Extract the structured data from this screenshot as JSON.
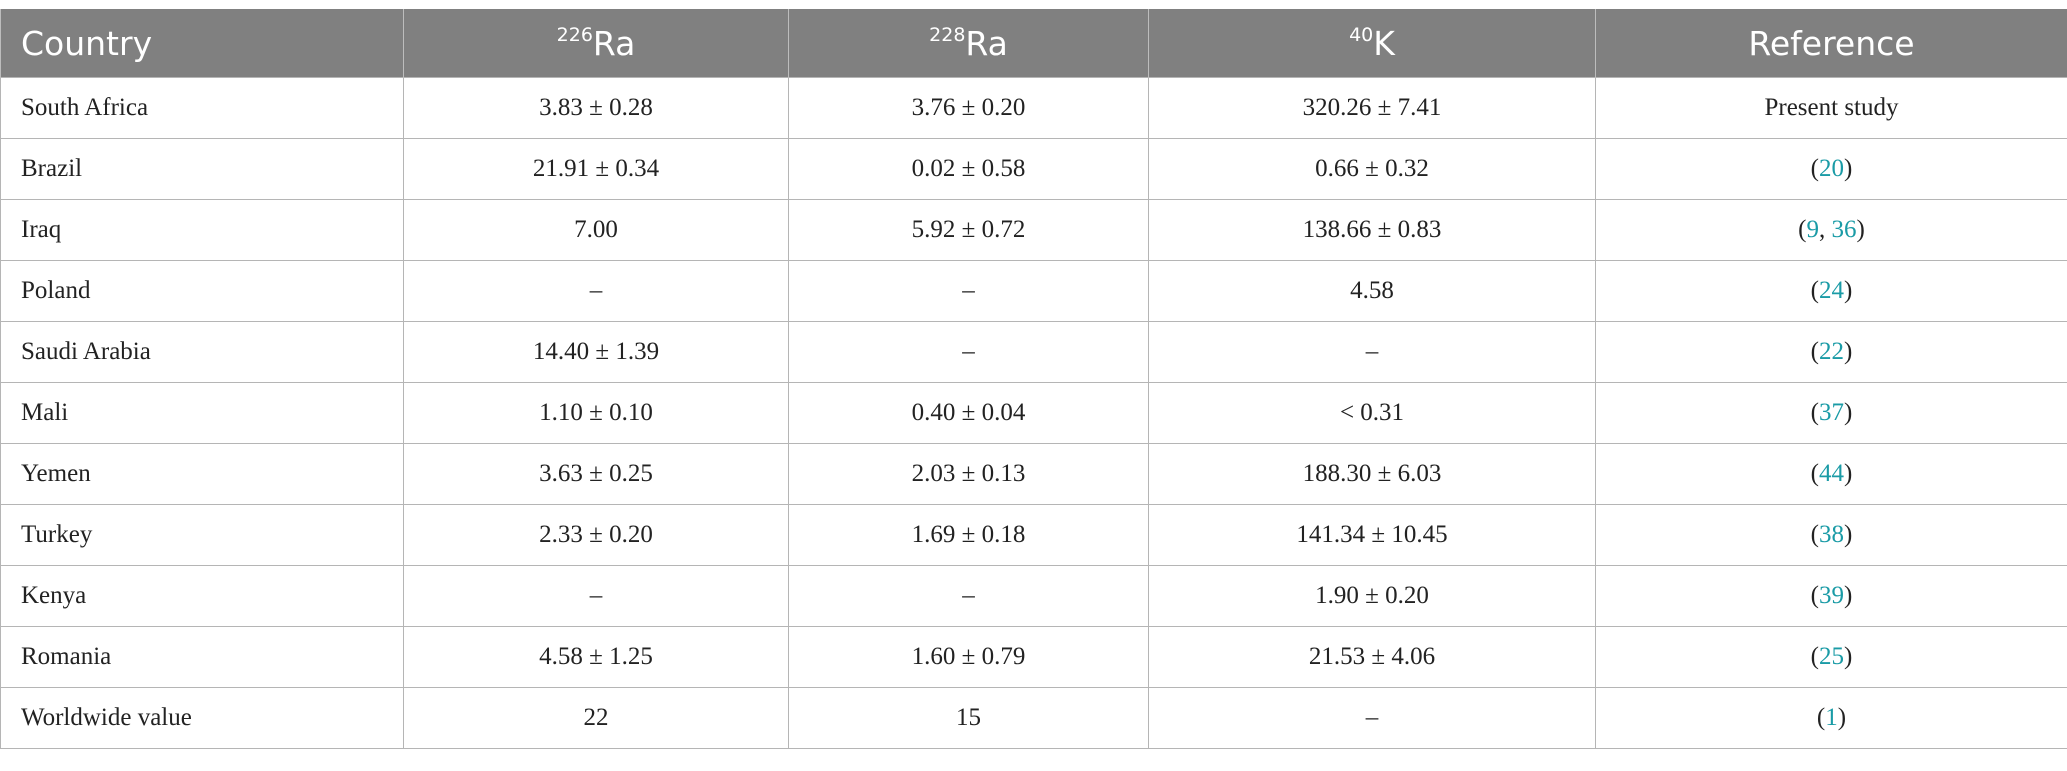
{
  "header": [
    {
      "text": "Country"
    },
    {
      "sup": "226",
      "text": "Ra"
    },
    {
      "sup": "228",
      "text": "Ra"
    },
    {
      "sup": "40",
      "text": "K"
    },
    {
      "text": "Reference"
    }
  ],
  "rows": [
    {
      "cells": [
        "South Africa",
        "3.83 ± 0.28",
        "3.76 ± 0.20",
        "320.26 ± 7.41"
      ],
      "reference": [
        "Present study"
      ]
    },
    {
      "cells": [
        "Brazil",
        "21.91 ± 0.34",
        "0.02 ± 0.58",
        "0.66 ± 0.32"
      ],
      "reference": [
        "(",
        {
          "ref": "20"
        },
        ")"
      ]
    },
    {
      "cells": [
        "Iraq",
        "7.00",
        "5.92 ± 0.72",
        "138.66 ± 0.83"
      ],
      "reference": [
        "(",
        {
          "ref": "9"
        },
        ", ",
        {
          "ref": "36"
        },
        ")"
      ]
    },
    {
      "cells": [
        "Poland",
        "–",
        "–",
        "4.58"
      ],
      "reference": [
        "(",
        {
          "ref": "24"
        },
        ")"
      ]
    },
    {
      "cells": [
        "Saudi Arabia",
        "14.40 ± 1.39",
        "–",
        "–"
      ],
      "reference": [
        "(",
        {
          "ref": "22"
        },
        ")"
      ]
    },
    {
      "cells": [
        "Mali",
        "1.10 ± 0.10",
        "0.40 ± 0.04",
        "< 0.31"
      ],
      "reference": [
        "(",
        {
          "ref": "37"
        },
        ")"
      ]
    },
    {
      "cells": [
        "Yemen",
        "3.63 ± 0.25",
        "2.03 ± 0.13",
        "188.30 ± 6.03"
      ],
      "reference": [
        "(",
        {
          "ref": "44"
        },
        ")"
      ]
    },
    {
      "cells": [
        "Turkey",
        "2.33 ± 0.20",
        "1.69 ± 0.18",
        "141.34 ± 10.45"
      ],
      "reference": [
        "(",
        {
          "ref": "38"
        },
        ")"
      ]
    },
    {
      "cells": [
        "Kenya",
        "–",
        "–",
        "1.90 ± 0.20"
      ],
      "reference": [
        "(",
        {
          "ref": "39"
        },
        ")"
      ]
    },
    {
      "cells": [
        "Romania",
        "4.58 ± 1.25",
        "1.60 ± 0.79",
        "21.53 ± 4.06"
      ],
      "reference": [
        "(",
        {
          "ref": "25"
        },
        ")"
      ]
    },
    {
      "cells": [
        "Worldwide value",
        "22",
        "15",
        "–"
      ],
      "reference": [
        "(",
        {
          "ref": "1"
        },
        ")"
      ]
    }
  ]
}
